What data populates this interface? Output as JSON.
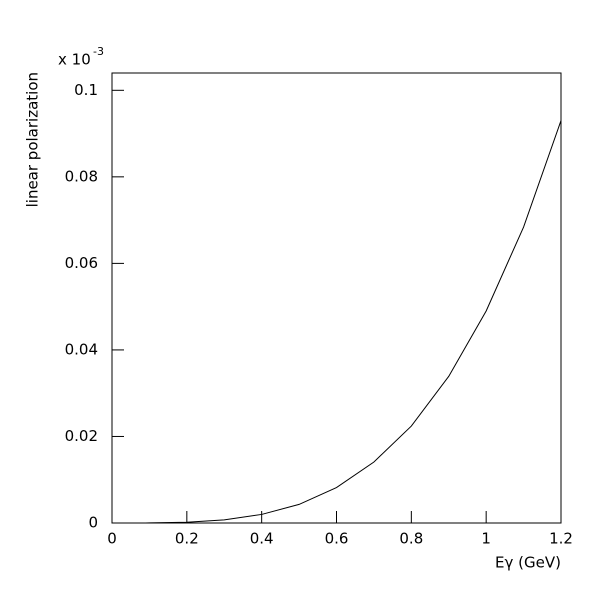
{
  "chart_data": {
    "type": "line",
    "y_axis_label": "linear polarization",
    "x_axis_label": "Eγ (GeV)",
    "axis_multiplier": {
      "base": "x 10",
      "exponent": "-3"
    },
    "x": [
      0.09,
      0.1,
      0.2,
      0.3,
      0.4,
      0.5,
      0.6,
      0.7,
      0.8,
      0.9,
      1.0,
      1.1,
      1.2
    ],
    "series": [
      {
        "color": "#000000",
        "values": [
          0.0,
          2e-05,
          0.00018,
          0.00073,
          0.00198,
          0.0043,
          0.0082,
          0.0141,
          0.0224,
          0.0339,
          0.049,
          0.0684,
          0.093
        ]
      }
    ],
    "xlim": [
      0,
      1.2
    ],
    "xticks": [
      0,
      0.2,
      0.4,
      0.6,
      0.8,
      1,
      1.2
    ],
    "ylim": [
      0,
      0.104
    ],
    "yticks": [
      0,
      0.02,
      0.04,
      0.06,
      0.08,
      0.1
    ],
    "grid": false
  }
}
